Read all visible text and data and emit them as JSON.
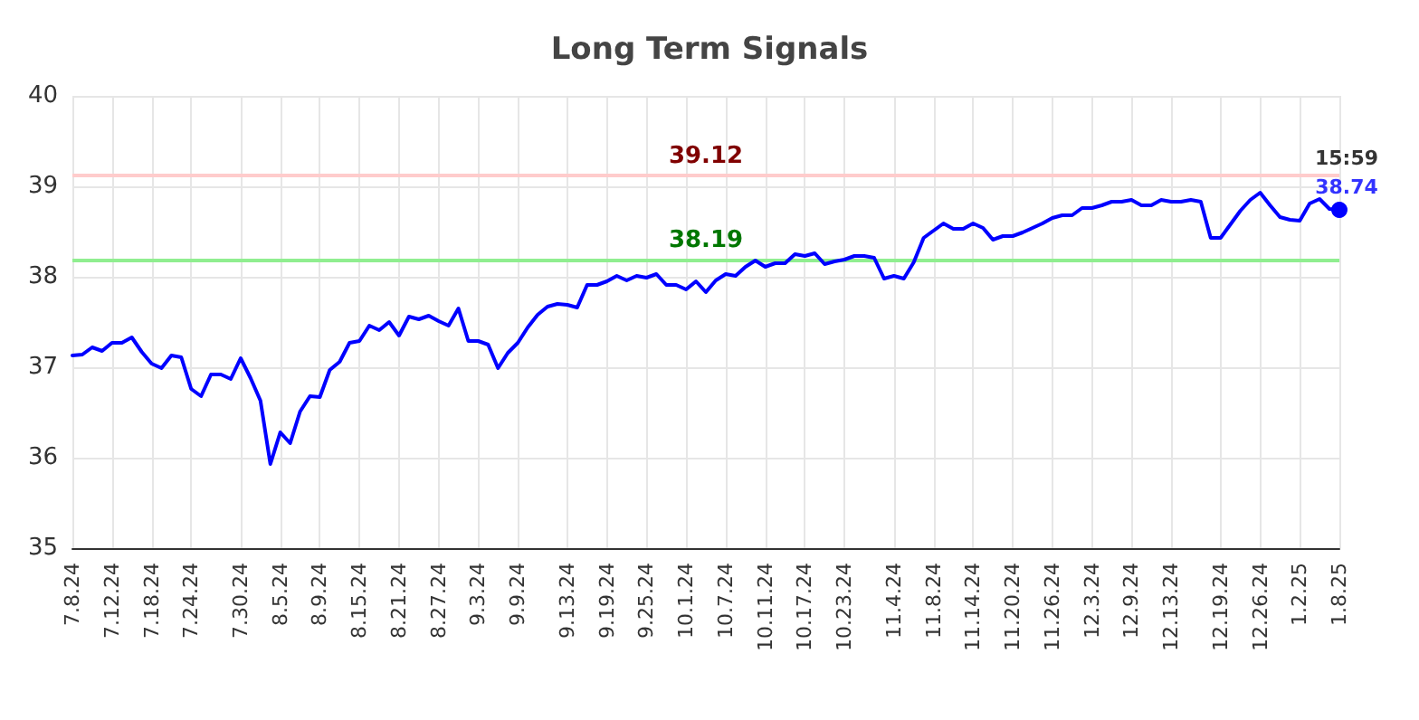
{
  "chart_data": {
    "type": "line",
    "title": "Long Term Signals",
    "categories": [
      "7.8.24",
      null,
      null,
      null,
      "7.12.24",
      null,
      null,
      null,
      "7.18.24",
      null,
      null,
      null,
      "7.24.24",
      null,
      null,
      null,
      null,
      "7.30.24",
      null,
      null,
      null,
      "8.5.24",
      null,
      null,
      null,
      "8.9.24",
      null,
      null,
      null,
      "8.15.24",
      null,
      null,
      null,
      "8.21.24",
      null,
      null,
      null,
      "8.27.24",
      null,
      null,
      null,
      "9.3.24",
      null,
      null,
      null,
      "9.9.24",
      null,
      null,
      null,
      null,
      "9.13.24",
      null,
      null,
      null,
      "9.19.24",
      null,
      null,
      null,
      "9.25.24",
      null,
      null,
      null,
      "10.1.24",
      null,
      null,
      null,
      "10.7.24",
      null,
      null,
      null,
      "10.11.24",
      null,
      null,
      null,
      "10.17.24",
      null,
      null,
      null,
      "10.23.24",
      null,
      null,
      null,
      null,
      "11.4.24",
      null,
      null,
      null,
      "11.8.24",
      null,
      null,
      null,
      "11.14.24",
      null,
      null,
      null,
      "11.20.24",
      null,
      null,
      null,
      "11.26.24",
      null,
      null,
      null,
      "12.3.24",
      null,
      null,
      null,
      "12.9.24",
      null,
      null,
      null,
      "12.13.24",
      null,
      null,
      null,
      null,
      "12.19.24",
      null,
      null,
      null,
      "12.26.24",
      null,
      null,
      null,
      "1.2.25",
      null,
      null,
      null,
      "1.8.25"
    ],
    "series": [
      {
        "color": "#0000ff",
        "values": [
          37.13,
          37.14,
          37.22,
          37.18,
          37.27,
          37.27,
          37.33,
          37.17,
          37.04,
          36.99,
          37.13,
          37.11,
          36.76,
          36.68,
          36.92,
          36.92,
          36.87,
          37.1,
          36.88,
          36.63,
          35.93,
          36.28,
          36.16,
          36.51,
          36.68,
          36.67,
          36.97,
          37.06,
          37.27,
          37.29,
          37.46,
          37.41,
          37.5,
          37.35,
          37.56,
          37.53,
          37.57,
          37.51,
          37.46,
          37.65,
          37.29,
          37.29,
          37.25,
          36.99,
          37.16,
          37.27,
          37.44,
          37.58,
          37.67,
          37.7,
          37.69,
          37.66,
          37.91,
          37.91,
          37.95,
          38.01,
          37.96,
          38.01,
          37.99,
          38.03,
          37.91,
          37.91,
          37.86,
          37.95,
          37.83,
          37.96,
          38.03,
          38.01,
          38.11,
          38.18,
          38.11,
          38.15,
          38.15,
          38.25,
          38.23,
          38.26,
          38.14,
          38.17,
          38.19,
          38.23,
          38.23,
          38.21,
          37.98,
          38.01,
          37.98,
          38.16,
          38.43,
          38.51,
          38.59,
          38.53,
          38.53,
          38.59,
          38.54,
          38.41,
          38.45,
          38.45,
          38.49,
          38.54,
          38.59,
          38.65,
          38.68,
          38.68,
          38.76,
          38.76,
          38.79,
          38.83,
          38.83,
          38.85,
          38.79,
          38.79,
          38.85,
          38.83,
          38.83,
          38.85,
          38.83,
          38.43,
          38.43,
          38.58,
          38.73,
          38.85,
          38.93,
          38.79,
          38.66,
          38.63,
          38.62,
          38.81,
          38.86,
          38.75,
          38.74
        ]
      }
    ],
    "ylim": [
      35,
      40
    ],
    "yticks": [
      35,
      36,
      37,
      38,
      39,
      40
    ],
    "grid": true,
    "marker": "none",
    "line_style": "solid",
    "ref_lines": [
      {
        "axis": "y",
        "value": 39.12,
        "label": "39.12",
        "color": "#ffcccc"
      },
      {
        "axis": "y",
        "value": 38.19,
        "label": "38.19",
        "color": "#90ee90"
      }
    ],
    "annotations": [
      {
        "text": "15:59",
        "x": "1.8.25",
        "y": 38.74
      },
      {
        "text": "38.74",
        "x": "1.8.25",
        "y": 38.74
      }
    ]
  }
}
